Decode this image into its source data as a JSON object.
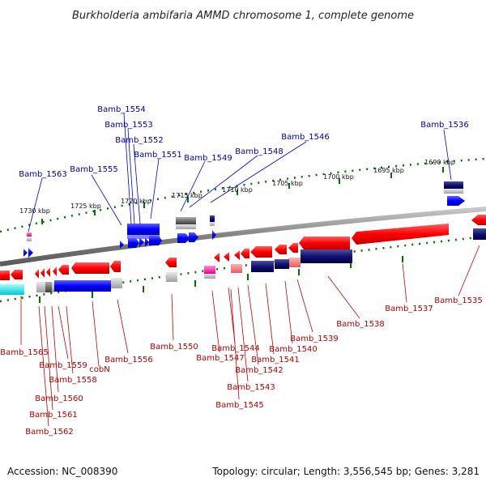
{
  "title": "Burkholderia ambifaria AMMD chromosome 1, complete genome",
  "footer": {
    "accession": "Accession: NC_008390",
    "summary": "Topology: circular; Length: 3,556,545 bp; Genes: 3,281"
  },
  "scale_labels": [
    "1730 kbp",
    "1725 kbp",
    "1720 kbp",
    "1715 kbp",
    "1710 kbp",
    "1705 kbp",
    "1700 kbp",
    "1695 kbp",
    "1690 kbp"
  ],
  "genes_top": [
    "Bamb_1554",
    "Bamb_1553",
    "Bamb_1552",
    "Bamb_1551",
    "Bamb_1555",
    "Bamb_1549",
    "Bamb_1548",
    "Bamb_1546",
    "Bamb_1536",
    "Bamb_1563"
  ],
  "genes_bottom": [
    "Bamb_1565",
    "Bamb_1559",
    "Bamb_1558",
    "cobN",
    "Bamb_1560",
    "Bamb_1561",
    "Bamb_1562",
    "Bamb_1556",
    "Bamb_1550",
    "Bamb_1547",
    "Bamb_1544",
    "Bamb_1542",
    "Bamb_1543",
    "Bamb_1545",
    "Bamb_1541",
    "Bamb_1540",
    "Bamb_1539",
    "Bamb_1538",
    "Bamb_1537",
    "Bamb_1535"
  ],
  "colors": {
    "forward": "#1a1aff",
    "reverse": "#ff1a1a",
    "backbone": "#808080",
    "scale_ticks": "#007000",
    "label_top": "#0000a0",
    "label_bottom": "#b00000"
  }
}
